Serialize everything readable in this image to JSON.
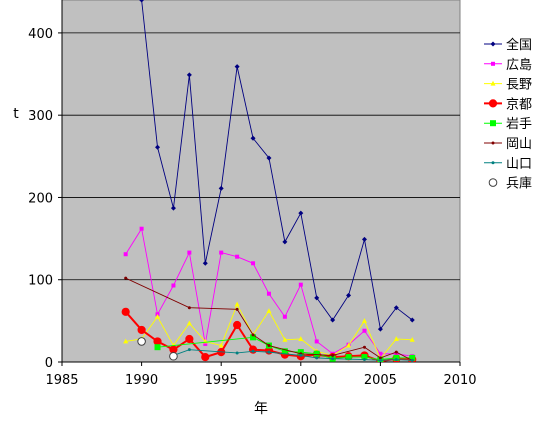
{
  "chart_data": {
    "type": "line",
    "title": "",
    "xlabel": "年",
    "ylabel": "t",
    "xlim": [
      1985,
      2010
    ],
    "ylim": [
      0,
      440
    ],
    "xticks": [
      1985,
      1990,
      1995,
      2000,
      2005,
      2010
    ],
    "yticks": [
      0,
      100,
      200,
      300,
      400
    ],
    "grid": "horizontal",
    "plot_background": "#c0c0c0",
    "legend_position": "right",
    "series": [
      {
        "name": "全国",
        "color": "#000080",
        "marker": "diamond-small",
        "points": [
          [
            1990,
            440
          ],
          [
            1991,
            261
          ],
          [
            1992,
            187
          ],
          [
            1993,
            349
          ],
          [
            1994,
            120
          ],
          [
            1995,
            211
          ],
          [
            1996,
            359
          ],
          [
            1997,
            272
          ],
          [
            1998,
            248
          ],
          [
            1999,
            146
          ],
          [
            2000,
            181
          ],
          [
            2001,
            78
          ],
          [
            2002,
            51
          ],
          [
            2003,
            81
          ],
          [
            2004,
            149
          ],
          [
            2005,
            40
          ],
          [
            2006,
            66
          ],
          [
            2007,
            51
          ]
        ]
      },
      {
        "name": "広島",
        "color": "#ff00ff",
        "marker": "square-small",
        "points": [
          [
            1989,
            131
          ],
          [
            1990,
            162
          ],
          [
            1991,
            58
          ],
          [
            1992,
            93
          ],
          [
            1993,
            133
          ],
          [
            1994,
            22
          ],
          [
            1995,
            133
          ],
          [
            1996,
            128
          ],
          [
            1997,
            120
          ],
          [
            1998,
            83
          ],
          [
            1999,
            55
          ],
          [
            2000,
            94
          ],
          [
            2001,
            25
          ],
          [
            2002,
            10
          ],
          [
            2003,
            21
          ],
          [
            2004,
            38
          ],
          [
            2005,
            10
          ],
          [
            2006,
            10
          ],
          [
            2007,
            7
          ]
        ]
      },
      {
        "name": "長野",
        "color": "#ffff00",
        "marker": "triangle-small",
        "points": [
          [
            1989,
            25
          ],
          [
            1990,
            28
          ],
          [
            1991,
            55
          ],
          [
            1992,
            20
          ],
          [
            1993,
            47
          ],
          [
            1994,
            25
          ],
          [
            1995,
            20
          ],
          [
            1996,
            70
          ],
          [
            1997,
            33
          ],
          [
            1998,
            62
          ],
          [
            1999,
            27
          ],
          [
            2000,
            28
          ],
          [
            2001,
            13
          ],
          [
            2002,
            8
          ],
          [
            2003,
            20
          ],
          [
            2004,
            50
          ],
          [
            2005,
            4
          ],
          [
            2006,
            28
          ],
          [
            2007,
            27
          ]
        ]
      },
      {
        "name": "京都",
        "color": "#ff0000",
        "marker": "circle",
        "points": [
          [
            1989,
            61
          ],
          [
            1990,
            39
          ],
          [
            1991,
            25
          ],
          [
            1992,
            15
          ],
          [
            1993,
            28
          ],
          [
            1994,
            6
          ],
          [
            1995,
            12
          ],
          [
            1996,
            45
          ],
          [
            1997,
            15
          ],
          [
            1998,
            14
          ],
          [
            1999,
            9
          ],
          [
            2000,
            7
          ],
          [
            2001,
            9
          ],
          [
            2002,
            6
          ],
          [
            2003,
            7
          ],
          [
            2004,
            8
          ],
          [
            2005,
            1
          ],
          [
            2006,
            4
          ],
          [
            2007,
            3
          ]
        ]
      },
      {
        "name": "岩手",
        "color": "#00ff00",
        "marker": "square",
        "points": [
          [
            1991,
            18
          ],
          [
            1997,
            30
          ],
          [
            1998,
            20
          ],
          [
            1999,
            13
          ],
          [
            2000,
            12
          ],
          [
            2001,
            10
          ],
          [
            2002,
            4
          ],
          [
            2003,
            6
          ],
          [
            2004,
            6
          ],
          [
            2005,
            3
          ],
          [
            2006,
            5
          ],
          [
            2007,
            5
          ]
        ]
      },
      {
        "name": "岡山",
        "color": "#800000",
        "marker": "dot",
        "points": [
          [
            1989,
            102
          ],
          [
            1993,
            66
          ],
          [
            1996,
            64
          ],
          [
            1997,
            33
          ],
          [
            1998,
            20
          ],
          [
            2000,
            10
          ],
          [
            2002,
            8
          ],
          [
            2004,
            18
          ],
          [
            2005,
            5
          ],
          [
            2006,
            12
          ],
          [
            2007,
            2
          ]
        ]
      },
      {
        "name": "山口",
        "color": "#008080",
        "marker": "dot",
        "points": [
          [
            1992,
            8
          ],
          [
            1993,
            15
          ],
          [
            1996,
            11
          ],
          [
            1997,
            13
          ],
          [
            1998,
            12
          ],
          [
            2000,
            8
          ],
          [
            2001,
            5
          ],
          [
            2002,
            4
          ],
          [
            2004,
            3
          ],
          [
            2005,
            2
          ],
          [
            2006,
            3
          ],
          [
            2007,
            2
          ]
        ]
      },
      {
        "name": "兵庫",
        "color": "#808000",
        "marker": "hollow-circle",
        "points": [
          [
            1990,
            25
          ],
          [
            1992,
            7
          ]
        ]
      }
    ]
  }
}
